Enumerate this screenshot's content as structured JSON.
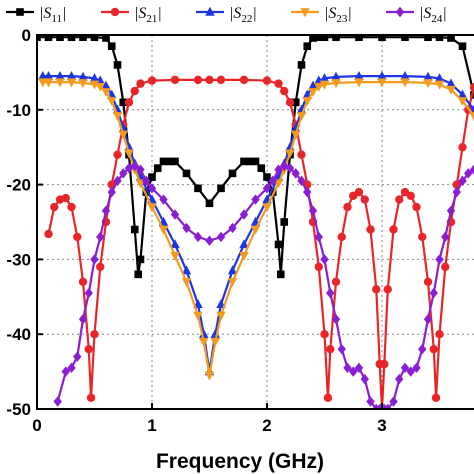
{
  "chart_data": {
    "type": "line",
    "title": "",
    "xlabel": "Frequency (GHz)",
    "ylabel": "",
    "xlim": [
      0,
      3.8
    ],
    "ylim": [
      -50,
      0
    ],
    "xticks": [
      0,
      1,
      2,
      3
    ],
    "yticks": [
      0,
      -10,
      -20,
      -30,
      -40,
      -50
    ],
    "xtick_labels": [
      "0",
      "1",
      "2",
      "3"
    ],
    "ytick_labels": [
      "0",
      "-10",
      "-20",
      "-30",
      "-40",
      "-50"
    ],
    "grid": "dotted",
    "legend_position": "top",
    "series": [
      {
        "name": "S11",
        "legend_main": "S",
        "legend_sub": "11",
        "color": "#000000",
        "marker": "square",
        "x": [
          0,
          0.1,
          0.2,
          0.3,
          0.4,
          0.5,
          0.6,
          0.65,
          0.7,
          0.75,
          0.8,
          0.85,
          0.88,
          0.9,
          0.95,
          1.0,
          1.05,
          1.1,
          1.15,
          1.2,
          1.3,
          1.4,
          1.5,
          1.6,
          1.7,
          1.8,
          1.85,
          1.9,
          1.95,
          2.0,
          2.05,
          2.1,
          2.12,
          2.15,
          2.2,
          2.25,
          2.3,
          2.35,
          2.4,
          2.45,
          2.5,
          2.6,
          2.8,
          3.0,
          3.2,
          3.4,
          3.5,
          3.6,
          3.7,
          3.8
        ],
        "y": [
          -0.3,
          -0.3,
          -0.3,
          -0.3,
          -0.3,
          -0.3,
          -0.4,
          -1.5,
          -4,
          -9,
          -16,
          -26,
          -32,
          -30,
          -21,
          -19,
          -17.8,
          -16.9,
          -16.9,
          -16.9,
          -18.5,
          -20.5,
          -22.5,
          -20.5,
          -18.5,
          -16.9,
          -16.9,
          -16.9,
          -17.8,
          -19,
          -21,
          -28,
          -32,
          -25,
          -16,
          -9,
          -4,
          -1.5,
          -0.4,
          -0.3,
          -0.3,
          -0.3,
          -0.3,
          -0.3,
          -0.3,
          -0.3,
          -0.3,
          -0.4,
          -1.5,
          -8
        ]
      },
      {
        "name": "S21",
        "legend_main": "S",
        "legend_sub": "21",
        "color": "#e8262a",
        "marker": "circle",
        "x": [
          0.1,
          0.15,
          0.2,
          0.25,
          0.3,
          0.35,
          0.4,
          0.45,
          0.47,
          0.5,
          0.55,
          0.6,
          0.65,
          0.7,
          0.75,
          0.8,
          0.85,
          0.9,
          1.0,
          1.2,
          1.4,
          1.5,
          1.6,
          1.8,
          2.0,
          2.1,
          2.15,
          2.2,
          2.25,
          2.3,
          2.35,
          2.4,
          2.45,
          2.5,
          2.53,
          2.55,
          2.6,
          2.65,
          2.7,
          2.75,
          2.8,
          2.85,
          2.9,
          2.95,
          2.98,
          3.0,
          3.02,
          3.05,
          3.1,
          3.15,
          3.2,
          3.25,
          3.3,
          3.35,
          3.4,
          3.45,
          3.47,
          3.5,
          3.55,
          3.6,
          3.65,
          3.7,
          3.75,
          3.8
        ],
        "y": [
          -26.6,
          -23,
          -22,
          -21.8,
          -23,
          -27,
          -33,
          -42,
          -48.5,
          -40,
          -31,
          -25,
          -20,
          -16,
          -12,
          -9,
          -7.5,
          -6.5,
          -6.1,
          -6.0,
          -6.0,
          -6.0,
          -6.0,
          -6.0,
          -6.1,
          -6.5,
          -7.5,
          -9,
          -12,
          -16,
          -20,
          -25,
          -31,
          -40,
          -48.5,
          -42,
          -33,
          -27,
          -23,
          -21.5,
          -21,
          -22,
          -26,
          -34,
          -44,
          -50,
          -44,
          -34,
          -26,
          -22,
          -21,
          -21.5,
          -23,
          -27,
          -33,
          -42,
          -48.5,
          -40,
          -31,
          -25,
          -20,
          -15,
          -10,
          -7
        ]
      },
      {
        "name": "S22",
        "legend_main": "S",
        "legend_sub": "22",
        "color": "#1c36e4",
        "marker": "triangle-up",
        "x": [
          0.05,
          0.1,
          0.2,
          0.3,
          0.4,
          0.5,
          0.55,
          0.6,
          0.65,
          0.7,
          0.75,
          0.8,
          0.85,
          0.9,
          1.0,
          1.1,
          1.2,
          1.3,
          1.4,
          1.45,
          1.5,
          1.55,
          1.6,
          1.7,
          1.8,
          1.9,
          2.0,
          2.1,
          2.15,
          2.2,
          2.25,
          2.3,
          2.35,
          2.4,
          2.45,
          2.5,
          2.6,
          2.8,
          3.0,
          3.2,
          3.4,
          3.5,
          3.6,
          3.7,
          3.8
        ],
        "y": [
          -5.5,
          -5.5,
          -5.5,
          -5.5,
          -5.6,
          -5.8,
          -6.1,
          -6.8,
          -8,
          -10,
          -12.5,
          -15,
          -17.2,
          -19,
          -22,
          -25,
          -28,
          -31.5,
          -36,
          -40,
          -45,
          -40,
          -36,
          -31.5,
          -28,
          -25,
          -22,
          -19,
          -17.2,
          -15,
          -12.5,
          -10,
          -8,
          -6.8,
          -6.1,
          -5.8,
          -5.6,
          -5.5,
          -5.5,
          -5.5,
          -5.6,
          -5.8,
          -6.5,
          -8,
          -10
        ]
      },
      {
        "name": "S23",
        "legend_main": "S",
        "legend_sub": "23",
        "color": "#f39b1f",
        "marker": "triangle-down",
        "x": [
          0.05,
          0.1,
          0.2,
          0.3,
          0.4,
          0.5,
          0.55,
          0.6,
          0.65,
          0.7,
          0.75,
          0.8,
          0.85,
          0.9,
          1.0,
          1.1,
          1.2,
          1.3,
          1.4,
          1.45,
          1.5,
          1.55,
          1.6,
          1.7,
          1.8,
          1.9,
          2.0,
          2.1,
          2.15,
          2.2,
          2.25,
          2.3,
          2.35,
          2.4,
          2.45,
          2.5,
          2.6,
          2.8,
          3.0,
          3.2,
          3.4,
          3.5,
          3.6,
          3.7,
          3.8
        ],
        "y": [
          -6.3,
          -6.3,
          -6.3,
          -6.3,
          -6.4,
          -6.6,
          -6.9,
          -7.6,
          -8.8,
          -10.8,
          -13.3,
          -15.8,
          -18,
          -19.8,
          -23,
          -26,
          -29.5,
          -33,
          -37.5,
          -41,
          -45.5,
          -41,
          -37.5,
          -33,
          -29.5,
          -26,
          -23,
          -19.8,
          -18,
          -15.8,
          -13.3,
          -10.8,
          -8.8,
          -7.6,
          -6.9,
          -6.6,
          -6.4,
          -6.3,
          -6.3,
          -6.3,
          -6.4,
          -6.6,
          -7.3,
          -8.8,
          -10.8
        ]
      },
      {
        "name": "S24",
        "legend_main": "S",
        "legend_sub": "24",
        "color": "#8a1fd1",
        "marker": "diamond",
        "x": [
          0.18,
          0.25,
          0.3,
          0.35,
          0.4,
          0.45,
          0.5,
          0.55,
          0.6,
          0.65,
          0.7,
          0.75,
          0.8,
          0.85,
          0.9,
          0.95,
          1.0,
          1.1,
          1.2,
          1.3,
          1.4,
          1.5,
          1.6,
          1.7,
          1.8,
          1.9,
          2.0,
          2.05,
          2.1,
          2.15,
          2.2,
          2.25,
          2.3,
          2.35,
          2.4,
          2.45,
          2.5,
          2.55,
          2.6,
          2.65,
          2.7,
          2.75,
          2.8,
          2.85,
          2.9,
          2.95,
          2.98,
          3.0,
          3.02,
          3.05,
          3.1,
          3.15,
          3.2,
          3.25,
          3.3,
          3.35,
          3.4,
          3.45,
          3.5,
          3.55,
          3.6,
          3.65,
          3.7,
          3.75,
          3.8
        ],
        "y": [
          -49,
          -45,
          -44.5,
          -43,
          -38,
          -34.5,
          -30,
          -27,
          -23.5,
          -21,
          -19.5,
          -18.5,
          -17.8,
          -17.5,
          -18,
          -19.5,
          -20.5,
          -22,
          -24,
          -25.8,
          -27,
          -27.5,
          -27,
          -25.8,
          -24,
          -22,
          -20.5,
          -19.5,
          -18,
          -17.5,
          -17.8,
          -18.5,
          -19.5,
          -21,
          -23.5,
          -27,
          -30,
          -34.5,
          -38,
          -42,
          -44.5,
          -45,
          -44.5,
          -46,
          -49,
          -50,
          -50,
          -50,
          -50,
          -50,
          -49,
          -46,
          -44.5,
          -45,
          -44.5,
          -42,
          -38,
          -34.5,
          -30,
          -27,
          -23.5,
          -21,
          -19.5,
          -18.5,
          -18
        ]
      }
    ]
  }
}
